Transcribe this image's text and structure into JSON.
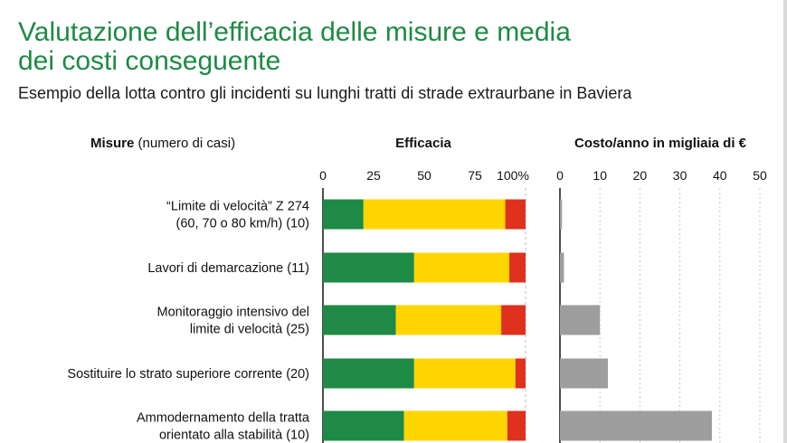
{
  "title": "Valutazione dell’efficacia delle misure e media dei costi conseguente",
  "subtitle": "Esempio della lotta contro gli incidenti su lunghi tratti di strade extraurbane in Baviera",
  "column_headers": {
    "measures_bold": "Misure",
    "measures_light": " (numero di casi)",
    "efficacy": "Efficacia",
    "cost": "Costo/anno in migliaia di €"
  },
  "colors": {
    "title": "#1e8a45",
    "green": "#1e8a45",
    "yellow": "#ffd500",
    "red": "#e0301e",
    "cost_bar": "#9e9e9e"
  },
  "chart_data": [
    {
      "type": "bar",
      "orientation": "horizontal",
      "stacked": true,
      "title": "Efficacia",
      "x_ticks": [
        "0",
        "25",
        "50",
        "75",
        "100%"
      ],
      "xlim": [
        0,
        100
      ],
      "categories": [
        [
          "“Limite di velocità” Z 274",
          "(60, 70 o 80 km/h) (10)"
        ],
        [
          "Lavori di demarcazione (11)"
        ],
        [
          "Monitoraggio intensivo del",
          "limite di velocità (25)"
        ],
        [
          "Sostituire lo strato superiore corrente (20)"
        ],
        [
          "Ammodernamento della tratta",
          "orientato alla stabilità (10)"
        ]
      ],
      "series": [
        {
          "color": "#1e8a45",
          "values": [
            20,
            45,
            36,
            45,
            40
          ]
        },
        {
          "color": "#ffd500",
          "values": [
            70,
            47,
            52,
            50,
            51
          ]
        },
        {
          "color": "#e0301e",
          "values": [
            10,
            8,
            12,
            5,
            9
          ]
        }
      ]
    },
    {
      "type": "bar",
      "orientation": "horizontal",
      "title": "Costo/anno in migliaia di €",
      "x_ticks": [
        "0",
        "10",
        "20",
        "30",
        "40",
        "50"
      ],
      "xlim": [
        0,
        50
      ],
      "values": [
        0.5,
        1,
        10,
        12,
        38
      ],
      "color": "#9e9e9e"
    }
  ]
}
